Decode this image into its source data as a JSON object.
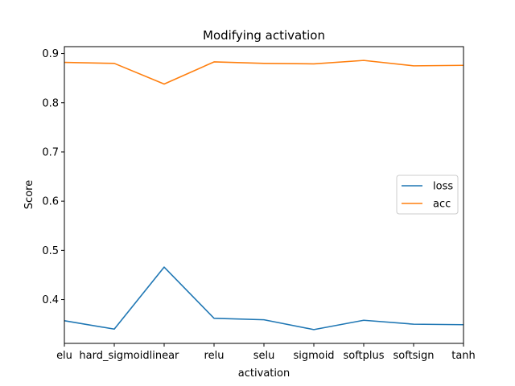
{
  "chart_data": {
    "type": "line",
    "title": "Modifying activation",
    "xlabel": "activation",
    "ylabel": "Score",
    "categories": [
      "elu",
      "hard_sigmoid",
      "linear",
      "relu",
      "selu",
      "sigmoid",
      "softplus",
      "softsign",
      "tanh"
    ],
    "series": [
      {
        "name": "loss",
        "color": "#1f77b4",
        "values": [
          0.357,
          0.34,
          0.466,
          0.362,
          0.359,
          0.339,
          0.358,
          0.35,
          0.349
        ]
      },
      {
        "name": "acc",
        "color": "#ff7f0e",
        "values": [
          0.882,
          0.88,
          0.838,
          0.883,
          0.88,
          0.879,
          0.886,
          0.875,
          0.876
        ]
      }
    ],
    "ylim": [
      0.311,
      0.914
    ],
    "yticks": [
      0.4,
      0.5,
      0.6,
      0.7,
      0.8,
      0.9
    ],
    "ytick_labels": [
      "0.4",
      "0.5",
      "0.6",
      "0.7",
      "0.8",
      "0.9"
    ],
    "legend": "center-right",
    "grid": false
  }
}
